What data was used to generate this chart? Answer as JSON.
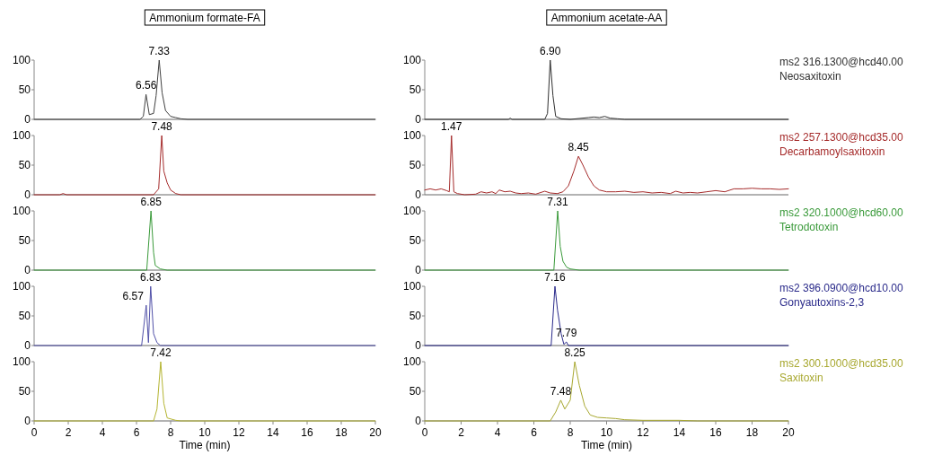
{
  "chart_data": [
    {
      "type": "line",
      "title": "Ammonium formate-FA",
      "xlim": [
        0,
        20
      ],
      "ylim": [
        0,
        100
      ],
      "yticks": [
        0,
        50,
        100
      ],
      "tick_labels": "y",
      "annotations": [
        {
          "text": "6.56",
          "x": 6.56,
          "y": 42
        },
        {
          "text": "7.33",
          "x": 7.33,
          "y": 100
        }
      ],
      "series": [
        {
          "color": "#404040",
          "x": [
            0,
            6.2,
            6.4,
            6.56,
            6.75,
            7.0,
            7.15,
            7.33,
            7.5,
            7.7,
            8.0,
            8.3,
            8.6,
            9,
            20
          ],
          "values": [
            0,
            0,
            5,
            42,
            8,
            10,
            40,
            100,
            45,
            15,
            5,
            3,
            1,
            0,
            0
          ]
        }
      ]
    },
    {
      "type": "line",
      "title": "Ammonium acetate-AA",
      "xlim": [
        0,
        20
      ],
      "ylim": [
        0,
        100
      ],
      "yticks": [
        0,
        50,
        100
      ],
      "tick_labels": "y",
      "annotations": [
        {
          "text": "6.90",
          "x": 6.9,
          "y": 100
        }
      ],
      "series": [
        {
          "name": "ms2 316.1300@hcd40.00\nNeosaxitoxin",
          "color": "#303030",
          "x": [
            0,
            4.6,
            4.7,
            4.8,
            6.6,
            6.75,
            6.9,
            7.05,
            7.2,
            7.5,
            8.0,
            9.0,
            9.3,
            9.6,
            9.9,
            10.2,
            10.6,
            11,
            20
          ],
          "values": [
            0,
            0,
            2,
            0,
            0,
            10,
            100,
            40,
            5,
            1,
            0,
            3,
            4,
            3,
            5,
            2,
            1,
            0,
            0
          ]
        }
      ]
    },
    {
      "type": "line",
      "xlim": [
        0,
        20
      ],
      "ylim": [
        0,
        100
      ],
      "yticks": [
        0,
        50,
        100
      ],
      "tick_labels": "y",
      "annotations": [
        {
          "text": "7.48",
          "x": 7.48,
          "y": 100
        }
      ],
      "series": [
        {
          "color": "#a52a2a",
          "x": [
            0,
            1.5,
            1.7,
            1.9,
            7.0,
            7.3,
            7.48,
            7.6,
            7.8,
            8.0,
            8.3,
            8.6,
            20
          ],
          "values": [
            0,
            0,
            2,
            0,
            0,
            10,
            100,
            40,
            20,
            8,
            2,
            0,
            0
          ]
        }
      ]
    },
    {
      "type": "line",
      "xlim": [
        0,
        20
      ],
      "ylim": [
        0,
        100
      ],
      "yticks": [
        0,
        50,
        100
      ],
      "tick_labels": "y",
      "annotations": [
        {
          "text": "1.47",
          "x": 1.47,
          "y": 100
        },
        {
          "text": "8.45",
          "x": 8.45,
          "y": 65
        }
      ],
      "series": [
        {
          "name": "ms2 257.1300@hcd35.00\nDecarbamoylsaxitoxin",
          "color": "#a52a2a",
          "x": [
            0,
            0.3,
            0.6,
            0.9,
            1.2,
            1.35,
            1.47,
            1.6,
            1.8,
            2.2,
            2.8,
            3.1,
            3.4,
            3.7,
            3.9,
            4.1,
            4.4,
            4.7,
            5.0,
            5.3,
            5.7,
            6.1,
            6.6,
            6.9,
            7.3,
            7.6,
            7.9,
            8.2,
            8.45,
            8.7,
            9.0,
            9.3,
            9.6,
            10,
            10.5,
            11,
            11.5,
            12,
            12.5,
            13,
            13.5,
            13.8,
            14.2,
            14.6,
            15,
            15.5,
            16,
            16.5,
            17,
            17.5,
            18,
            18.5,
            19,
            19.5,
            20
          ],
          "values": [
            8,
            10,
            8,
            10,
            7,
            5,
            100,
            5,
            2,
            0,
            1,
            5,
            3,
            5,
            2,
            8,
            5,
            6,
            3,
            2,
            3,
            1,
            6,
            3,
            2,
            5,
            15,
            40,
            65,
            50,
            30,
            15,
            8,
            5,
            5,
            6,
            4,
            5,
            3,
            4,
            2,
            6,
            3,
            4,
            3,
            5,
            7,
            5,
            10,
            10,
            11,
            10,
            10,
            9,
            10
          ]
        }
      ]
    },
    {
      "type": "line",
      "xlim": [
        0,
        20
      ],
      "ylim": [
        0,
        100
      ],
      "yticks": [
        0,
        50,
        100
      ],
      "tick_labels": "y",
      "annotations": [
        {
          "text": "6.85",
          "x": 6.85,
          "y": 100
        }
      ],
      "series": [
        {
          "color": "#3a9a3a",
          "x": [
            0,
            6.6,
            6.85,
            7.0,
            7.1,
            7.4,
            7.8,
            20
          ],
          "values": [
            0,
            0,
            100,
            30,
            8,
            2,
            0,
            0
          ]
        }
      ]
    },
    {
      "type": "line",
      "xlim": [
        0,
        20
      ],
      "ylim": [
        0,
        100
      ],
      "yticks": [
        0,
        50,
        100
      ],
      "tick_labels": "y",
      "annotations": [
        {
          "text": "7.31",
          "x": 7.31,
          "y": 100
        }
      ],
      "series": [
        {
          "name": "ms2 320.1000@hcd60.00\nTetrodotoxin",
          "color": "#3a9a3a",
          "x": [
            0,
            7.1,
            7.31,
            7.45,
            7.6,
            7.8,
            8,
            8.5,
            20
          ],
          "values": [
            0,
            0,
            100,
            40,
            15,
            5,
            2,
            0,
            0
          ]
        }
      ]
    },
    {
      "type": "line",
      "xlim": [
        0,
        20
      ],
      "ylim": [
        0,
        100
      ],
      "yticks": [
        0,
        50,
        100
      ],
      "tick_labels": "y",
      "annotations": [
        {
          "text": "6.57",
          "x": 6.57,
          "y": 68
        },
        {
          "text": "6.83",
          "x": 6.83,
          "y": 100
        }
      ],
      "series": [
        {
          "color": "#5050a8",
          "x": [
            0,
            6.3,
            6.57,
            6.7,
            6.83,
            7.0,
            7.2,
            7.4,
            20
          ],
          "values": [
            0,
            0,
            68,
            5,
            100,
            20,
            5,
            0,
            0
          ]
        }
      ]
    },
    {
      "type": "line",
      "xlim": [
        0,
        20
      ],
      "ylim": [
        0,
        100
      ],
      "yticks": [
        0,
        50,
        100
      ],
      "tick_labels": "y",
      "annotations": [
        {
          "text": "7.16",
          "x": 7.16,
          "y": 100
        },
        {
          "text": "7.79",
          "x": 7.79,
          "y": 6
        }
      ],
      "series": [
        {
          "name": "ms2 396.0900@hcd10.00\nGonyautoxins-2,3",
          "color": "#2a2a8a",
          "x": [
            0,
            6.95,
            7.16,
            7.3,
            7.5,
            7.65,
            7.79,
            7.9,
            20
          ],
          "values": [
            0,
            0,
            100,
            60,
            20,
            2,
            6,
            0,
            0
          ]
        }
      ]
    },
    {
      "type": "line",
      "xlabel": "Time (min)",
      "xlim": [
        0,
        20
      ],
      "xticks": [
        0,
        2,
        4,
        6,
        8,
        10,
        12,
        14,
        16,
        18,
        20
      ],
      "ylim": [
        0,
        100
      ],
      "yticks": [
        0,
        50,
        100
      ],
      "annotations": [
        {
          "text": "7.42",
          "x": 7.42,
          "y": 100
        }
      ],
      "series": [
        {
          "color": "#b5b532",
          "x": [
            0,
            7.0,
            7.2,
            7.42,
            7.6,
            7.8,
            8.3,
            8.6,
            20
          ],
          "values": [
            0,
            0,
            20,
            100,
            30,
            5,
            1,
            0,
            0
          ]
        }
      ]
    },
    {
      "type": "line",
      "xlabel": "Time (min)",
      "xlim": [
        0,
        20
      ],
      "xticks": [
        0,
        2,
        4,
        6,
        8,
        10,
        12,
        14,
        16,
        18,
        20
      ],
      "ylim": [
        0,
        100
      ],
      "yticks": [
        0,
        50,
        100
      ],
      "annotations": [
        {
          "text": "7.48",
          "x": 7.48,
          "y": 35
        },
        {
          "text": "8.25",
          "x": 8.25,
          "y": 100
        }
      ],
      "series": [
        {
          "name": "ms2 300.1000@hcd35.00\nSaxitoxin",
          "color": "#a8a830",
          "x": [
            0,
            6.9,
            7.2,
            7.48,
            7.7,
            8.0,
            8.25,
            8.5,
            8.8,
            9.1,
            9.5,
            10,
            10.5,
            11,
            12,
            14,
            15,
            20
          ],
          "values": [
            0,
            0,
            15,
            35,
            20,
            35,
            100,
            60,
            25,
            10,
            6,
            5,
            4,
            2,
            1,
            1,
            0,
            0
          ]
        }
      ]
    }
  ]
}
